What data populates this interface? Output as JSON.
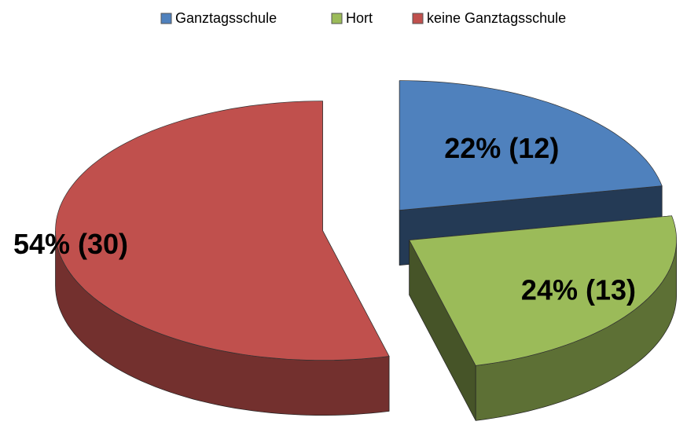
{
  "chart_data": {
    "type": "pie3d",
    "categories": [
      "Ganztagsschule",
      "Hort",
      "keine Ganztagsschule"
    ],
    "values": [
      22,
      24,
      54
    ],
    "value_labels": [
      "22% (12)",
      "24% (13)",
      "54% (30)"
    ],
    "colors": [
      "#4f81bd",
      "#9bbb59",
      "#c0504d"
    ],
    "legend": "top"
  }
}
